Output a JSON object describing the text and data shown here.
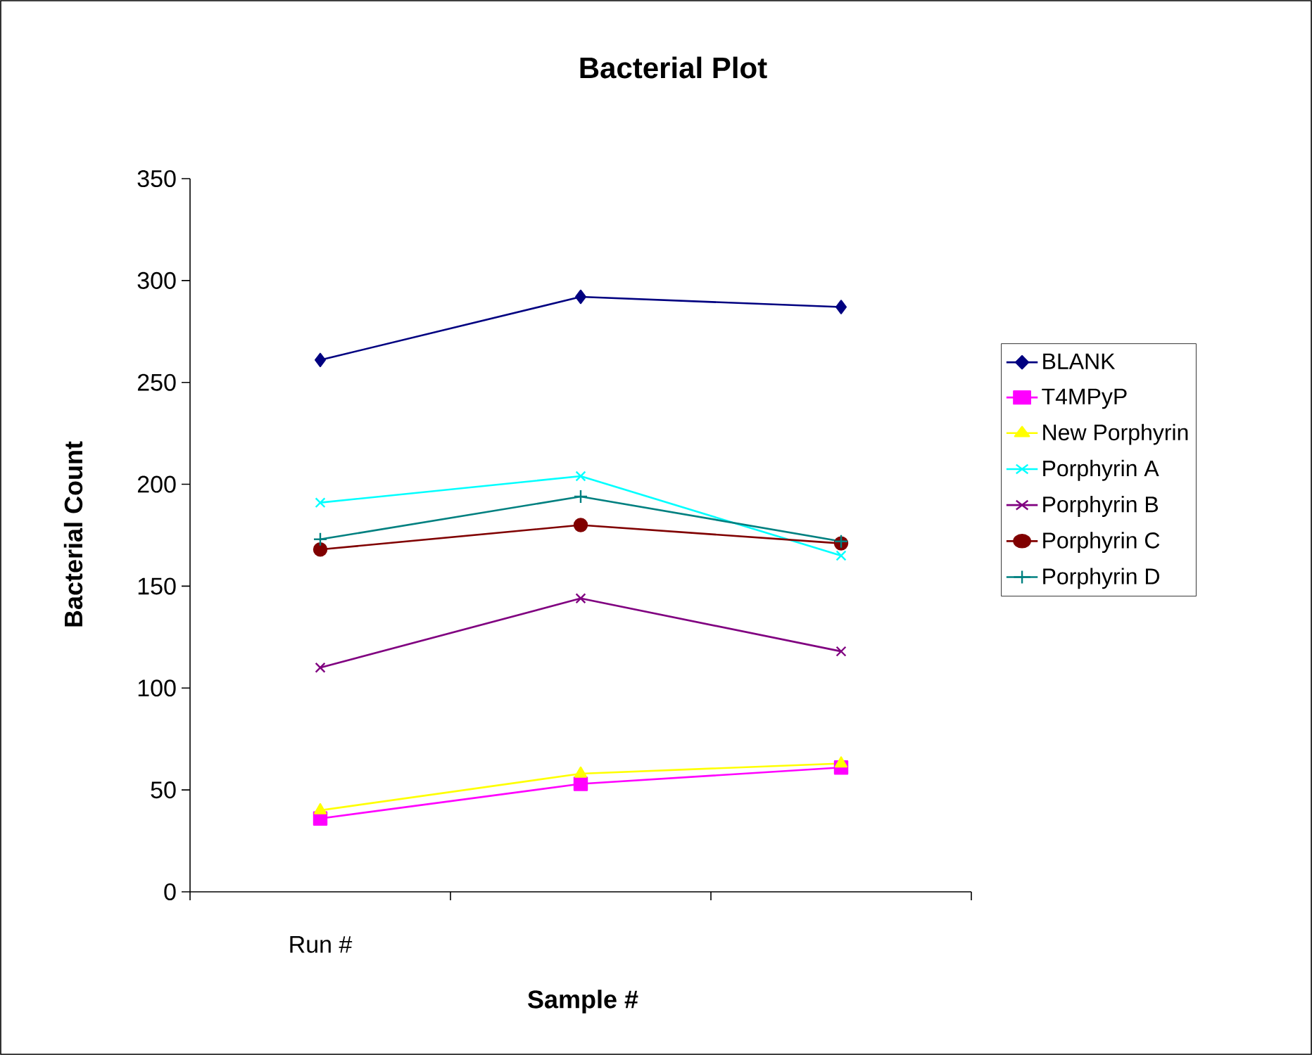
{
  "chart_data": {
    "type": "line",
    "title": "Bacterial Plot",
    "xlabel": "Sample #",
    "ylabel": "Bacterial Count",
    "categories": [
      "Run #",
      null,
      null
    ],
    "ylim": [
      0,
      350
    ],
    "yticks": [
      0,
      50,
      100,
      150,
      200,
      250,
      300,
      350
    ],
    "grid": false,
    "legend": "right",
    "line_style": "solid",
    "series": [
      {
        "name": "BLANK",
        "color": "#000080",
        "marker": "diamond",
        "values": [
          261,
          292,
          287
        ]
      },
      {
        "name": "T4MPyP",
        "color": "#ff00ff",
        "marker": "square",
        "values": [
          36,
          53,
          61
        ]
      },
      {
        "name": "New Porphyrin",
        "color": "#ffff00",
        "marker": "triangle",
        "values": [
          40,
          58,
          63
        ]
      },
      {
        "name": "Porphyrin A",
        "color": "#00ffff",
        "marker": "cross",
        "values": [
          191,
          204,
          165
        ]
      },
      {
        "name": "Porphyrin B",
        "color": "#800080",
        "marker": "cross",
        "values": [
          110,
          144,
          118
        ]
      },
      {
        "name": "Porphyrin C",
        "color": "#800000",
        "marker": "circle",
        "values": [
          168,
          180,
          171
        ]
      },
      {
        "name": "Porphyrin D",
        "color": "#008080",
        "marker": "plus",
        "values": [
          173,
          194,
          172
        ]
      }
    ]
  }
}
